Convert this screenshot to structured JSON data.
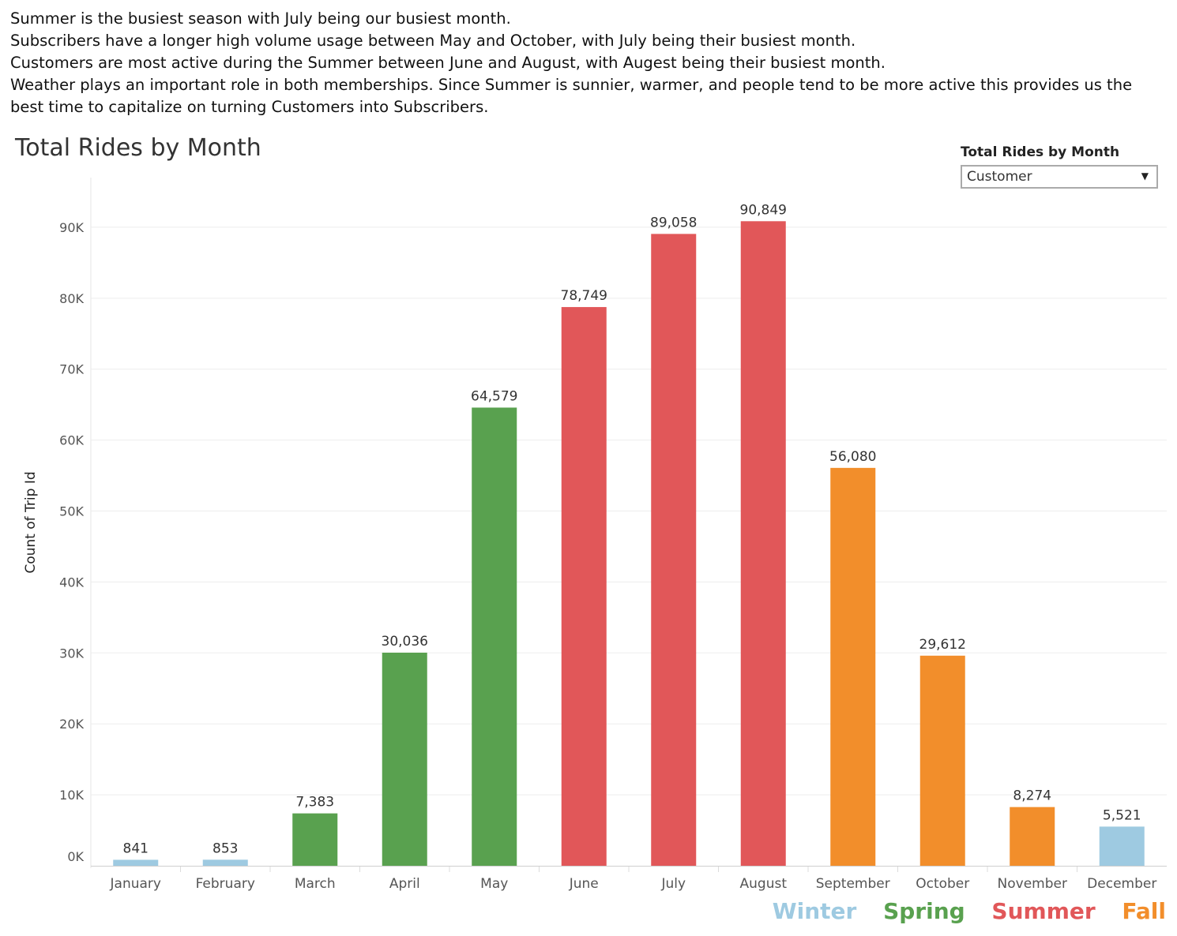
{
  "notes": [
    "Summer is the busiest season with July being our busiest month.",
    "Subscribers have a longer high volume usage between May and October, with July being their busiest month.",
    "Customers are most active during the Summer between June and August, with Augest being their busiest month.",
    "Weather plays an important role in both memberships. Since Summer is sunnier, warmer, and people tend to be more active this provides us the best time to capitalize on turning Customers into Subscribers."
  ],
  "filter": {
    "label": "Total Rides by Month",
    "value": "Customer"
  },
  "legend": [
    {
      "label": "Winter",
      "color": "#9ecae1"
    },
    {
      "label": "Spring",
      "color": "#59a14f"
    },
    {
      "label": "Summer",
      "color": "#e15759"
    },
    {
      "label": "Fall",
      "color": "#f28e2b"
    }
  ],
  "chart_data": {
    "type": "bar",
    "title": "Total Rides by Month",
    "ylabel": "Count of Trip Id",
    "xlabel": "",
    "ylim": [
      0,
      97000
    ],
    "yticks": [
      0,
      10000,
      20000,
      30000,
      40000,
      50000,
      60000,
      70000,
      80000,
      90000
    ],
    "ytick_labels": [
      "0K",
      "10K",
      "20K",
      "30K",
      "40K",
      "50K",
      "60K",
      "70K",
      "80K",
      "90K"
    ],
    "categories": [
      "January",
      "February",
      "March",
      "April",
      "May",
      "June",
      "July",
      "August",
      "September",
      "October",
      "November",
      "December"
    ],
    "values": [
      841,
      853,
      7383,
      30036,
      64579,
      78749,
      89058,
      90849,
      56080,
      29612,
      8274,
      5521
    ],
    "value_labels": [
      "841",
      "853",
      "7,383",
      "30,036",
      "64,579",
      "78,749",
      "89,058",
      "90,849",
      "56,080",
      "29,612",
      "8,274",
      "5,521"
    ],
    "seasons": [
      "Winter",
      "Winter",
      "Spring",
      "Spring",
      "Spring",
      "Summer",
      "Summer",
      "Summer",
      "Fall",
      "Fall",
      "Fall",
      "Winter"
    ],
    "grid": true
  }
}
